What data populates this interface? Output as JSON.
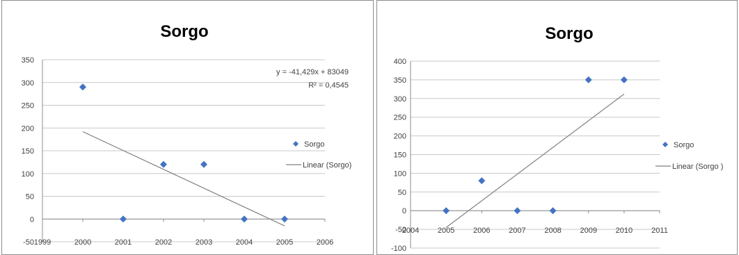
{
  "chart_data": [
    {
      "type": "scatter",
      "title": "Sorgo",
      "xlabel": "",
      "ylabel": "",
      "xlim": [
        1999,
        2006
      ],
      "ylim": [
        -50,
        350
      ],
      "x_ticks": [
        1999,
        2000,
        2001,
        2002,
        2003,
        2004,
        2005,
        2006
      ],
      "y_ticks": [
        -50,
        0,
        50,
        100,
        150,
        200,
        250,
        300,
        350
      ],
      "grid": true,
      "legend_position": "right",
      "series": [
        {
          "name": "Sorgo",
          "color": "#4472c4",
          "marker": "diamond",
          "x": [
            2000,
            2001,
            2002,
            2003,
            2004,
            2005
          ],
          "y": [
            290,
            0,
            120,
            120,
            0,
            0
          ]
        }
      ],
      "trendline": {
        "name": "Linear (Sorgo)",
        "color": "#808080",
        "x": [
          2000,
          2005
        ],
        "y": [
          192,
          -15
        ],
        "equation": "y = -41,429x + 83049",
        "r_squared": "R² = 0,4545"
      }
    },
    {
      "type": "scatter",
      "title": "Sorgo",
      "xlabel": "",
      "ylabel": "",
      "xlim": [
        2004,
        2011
      ],
      "ylim": [
        -100,
        400
      ],
      "x_ticks": [
        2004,
        2005,
        2006,
        2007,
        2008,
        2009,
        2010,
        2011
      ],
      "y_ticks": [
        -100,
        -50,
        0,
        50,
        100,
        150,
        200,
        250,
        300,
        350,
        400
      ],
      "grid": true,
      "legend_position": "right",
      "series": [
        {
          "name": "Sorgo",
          "color": "#4472c4",
          "marker": "diamond",
          "x": [
            2005,
            2006,
            2007,
            2008,
            2009,
            2010
          ],
          "y": [
            0,
            80,
            0,
            0,
            350,
            350
          ]
        }
      ],
      "trendline": {
        "name": "Linear (Sorgo )",
        "color": "#808080",
        "x": [
          2005,
          2010
        ],
        "y": [
          -45,
          312
        ]
      }
    }
  ]
}
